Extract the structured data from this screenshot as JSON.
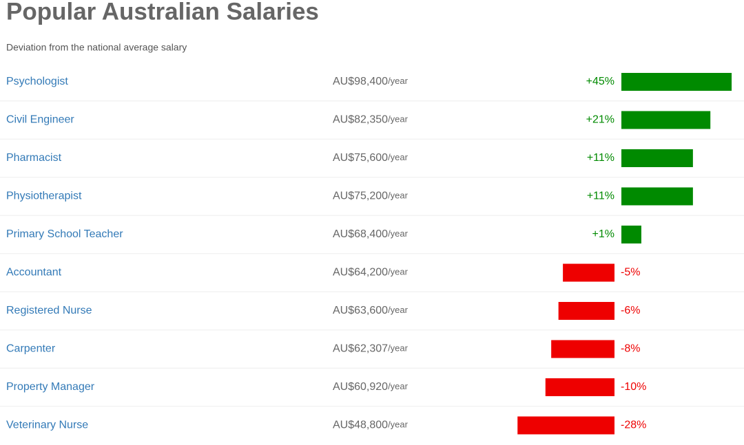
{
  "chart_data": {
    "type": "deviation-bar",
    "title": "Popular Australian Salaries",
    "subtitle": "Deviation from the national average salary",
    "categories": [
      "Psychologist",
      "Civil Engineer",
      "Pharmacist",
      "Physiotherapist",
      "Primary School Teacher",
      "Accountant",
      "Registered Nurse",
      "Carpenter",
      "Property Manager",
      "Veterinary Nurse"
    ],
    "salaries": [
      "AU$98,400",
      "AU$82,350",
      "AU$75,600",
      "AU$75,200",
      "AU$68,400",
      "AU$64,200",
      "AU$63,600",
      "AU$62,307",
      "AU$60,920",
      "AU$48,800"
    ],
    "salary_unit": "/year",
    "values": [
      45,
      21,
      11,
      11,
      1,
      -5,
      -6,
      -8,
      -10,
      -28
    ],
    "value_labels": [
      "+45%",
      "+21%",
      "+11%",
      "+11%",
      "+1%",
      "-5%",
      "-6%",
      "-8%",
      "-10%",
      "-28%"
    ],
    "positive_color": "#008a00",
    "negative_color": "#ee0000",
    "log_scale": true
  }
}
